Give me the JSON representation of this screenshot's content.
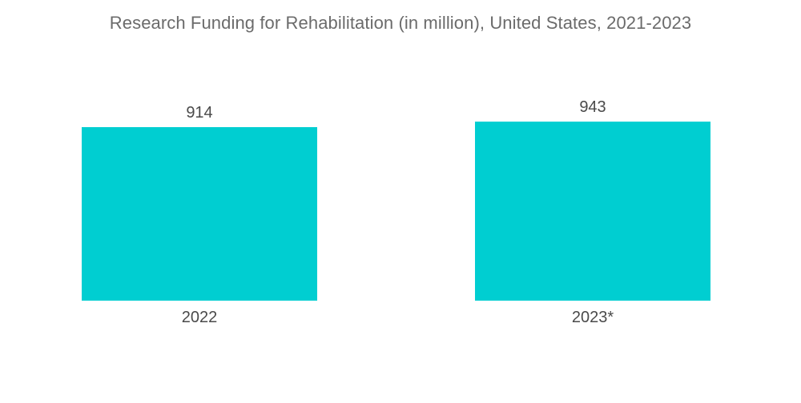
{
  "chart_data": {
    "type": "bar",
    "title": "Research Funding for Rehabilitation (in million), United States, 2021-2023",
    "categories": [
      "2022",
      "2023*"
    ],
    "values": [
      914,
      943
    ],
    "data_labels": [
      "914",
      "943"
    ],
    "xlabel": "",
    "ylabel": "",
    "ylim": [
      0,
      1000
    ],
    "grid": false,
    "legend": "none",
    "bar_color": "#00CED1"
  }
}
